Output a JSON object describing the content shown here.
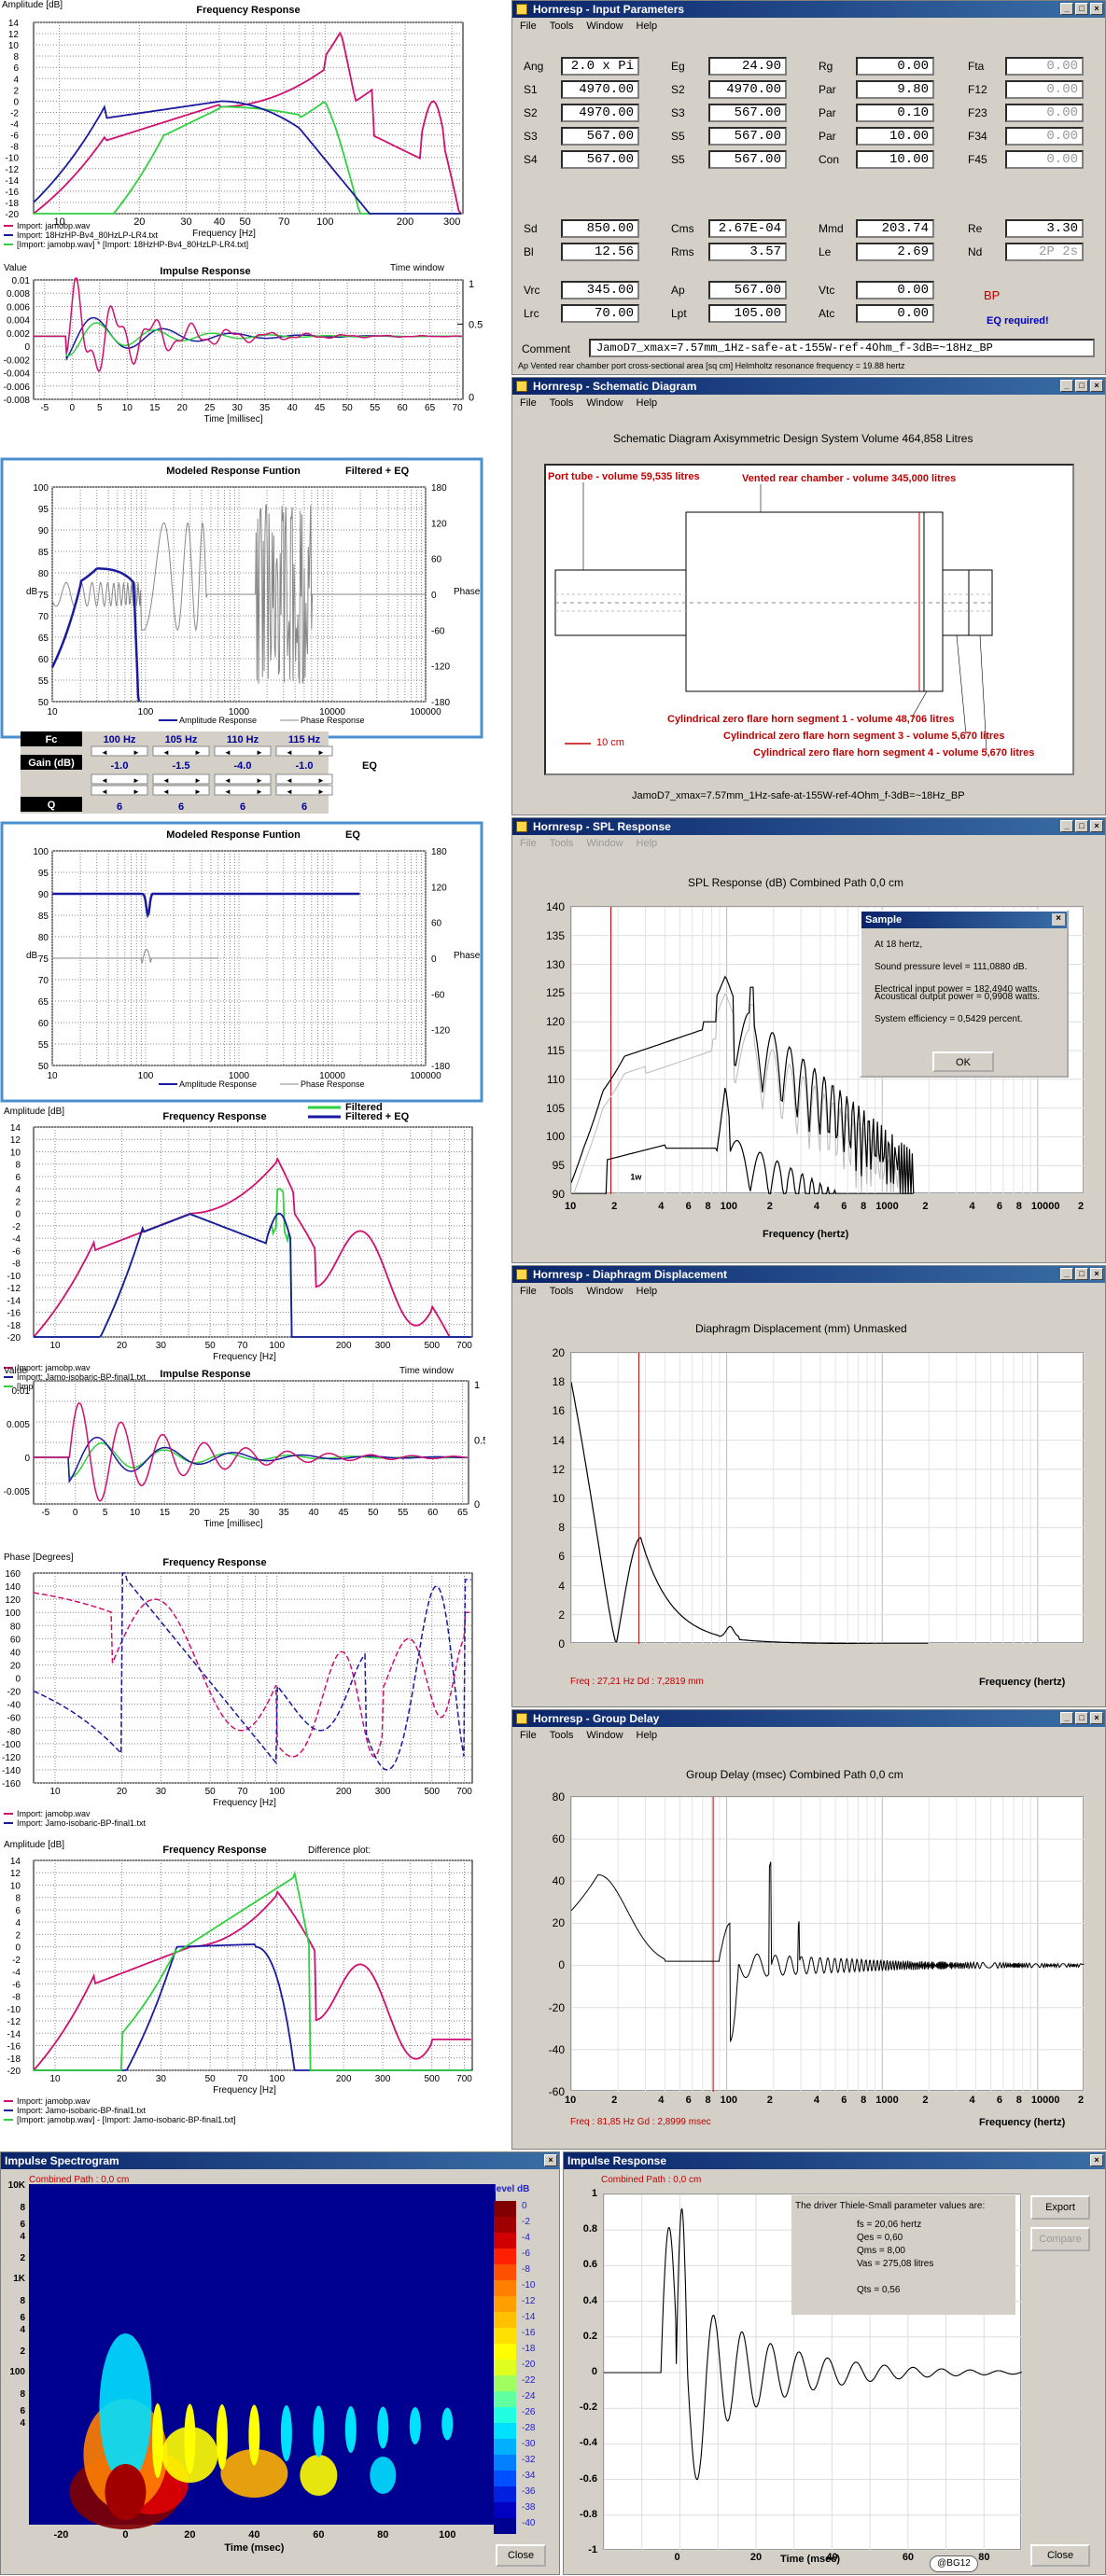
{
  "input_params": {
    "title": "Hornresp - Input Parameters",
    "menu": [
      "File",
      "Tools",
      "Window",
      "Help"
    ],
    "rows1": [
      [
        [
          "Ang",
          "2.0 x Pi"
        ],
        [
          "Eg",
          "24.90"
        ],
        [
          "Rg",
          "0.00"
        ],
        [
          "Fta",
          "0.00"
        ]
      ],
      [
        [
          "S1",
          "4970.00"
        ],
        [
          "S2",
          "4970.00"
        ],
        [
          "Par",
          "9.80"
        ],
        [
          "F12",
          "0.00"
        ]
      ],
      [
        [
          "S2",
          "4970.00"
        ],
        [
          "S3",
          "567.00"
        ],
        [
          "Par",
          "0.10"
        ],
        [
          "F23",
          "0.00"
        ]
      ],
      [
        [
          "S3",
          "567.00"
        ],
        [
          "S5",
          "567.00"
        ],
        [
          "Par",
          "10.00"
        ],
        [
          "F34",
          "0.00"
        ]
      ],
      [
        [
          "S4",
          "567.00"
        ],
        [
          "S5",
          "567.00"
        ],
        [
          "Con",
          "10.00"
        ],
        [
          "F45",
          "0.00"
        ]
      ]
    ],
    "rows2": [
      [
        [
          "Sd",
          "850.00"
        ],
        [
          "Cms",
          "2.67E-04"
        ],
        [
          "Mmd",
          "203.74"
        ],
        [
          "Re",
          "3.30"
        ]
      ],
      [
        [
          "Bl",
          "12.56"
        ],
        [
          "Rms",
          "3.57"
        ],
        [
          "Le",
          "2.69"
        ],
        [
          "Nd",
          "2P 2s"
        ]
      ]
    ],
    "rows3": [
      [
        [
          "Vrc",
          "345.00"
        ],
        [
          "Ap",
          "567.00"
        ],
        [
          "Vtc",
          "0.00"
        ]
      ],
      [
        [
          "Lrc",
          "70.00"
        ],
        [
          "Lpt",
          "105.00"
        ],
        [
          "Atc",
          "0.00"
        ]
      ]
    ],
    "bp": "BP",
    "eq_required": "EQ required!",
    "comment_label": "Comment",
    "comment": "JamoD7_xmax=7.57mm_1Hz-safe-at-155W-ref-4Ohm_f-3dB=~18Hz_BP",
    "status": "Ap   Vented rear chamber port cross-sectional area  [sq cm]   Helmholtz resonance frequency = 19.88 hertz"
  },
  "schematic": {
    "title": "Hornresp - Schematic Diagram",
    "menu": [
      "File",
      "Tools",
      "Window",
      "Help"
    ],
    "header": "Schematic Diagram   Axisymmetric Design   System Volume 464,858 Litres",
    "port_label": "Port tube - volume 59,535 litres",
    "rear_label": "Vented rear chamber - volume 345,000 litres",
    "seg1": "Cylindrical zero flare horn segment 1 - volume 48,706 litres",
    "seg3": "Cylindrical zero flare horn segment 3 - volume 5,670 litres",
    "seg4": "Cylindrical zero flare horn segment 4 - volume 5,670 litres",
    "scale": "10 cm",
    "footer": "JamoD7_xmax=7.57mm_1Hz-safe-at-155W-ref-4Ohm_f-3dB=~18Hz_BP"
  },
  "spl": {
    "title": "Hornresp - SPL Response",
    "menu": [
      "File",
      "Tools",
      "Window",
      "Help"
    ],
    "header": "SPL Response (dB)   Combined   Path 0,0 cm",
    "yticks": [
      "140",
      "135",
      "130",
      "125",
      "120",
      "115",
      "110",
      "105",
      "100",
      "95",
      "90"
    ],
    "xticks": [
      "10",
      "2",
      "4",
      "6",
      "8",
      "100",
      "2",
      "4",
      "6",
      "8",
      "1000",
      "2",
      "4",
      "6",
      "8",
      "10000",
      "2"
    ],
    "xlabel": "Frequency (hertz)",
    "marker": "1w",
    "dialog": {
      "title": "Sample",
      "lines": [
        "At 18 hertz,",
        "Sound pressure level = 111,0880 dB.",
        "Electrical input power = 182,4940 watts.",
        "Acoustical output power = 0,9908 watts.",
        "System efficiency = 0,5429 percent."
      ],
      "ok": "OK"
    }
  },
  "displacement": {
    "title": "Hornresp - Diaphragm Displacement",
    "menu": [
      "File",
      "Tools",
      "Window",
      "Help"
    ],
    "header": "Diaphragm Displacement (mm)   Unmasked",
    "yticks": [
      "20",
      "18",
      "16",
      "14",
      "12",
      "10",
      "8",
      "6",
      "4",
      "2",
      "0"
    ],
    "xticks": [
      "10",
      "2",
      "4",
      "6",
      "8",
      "100",
      "2",
      "4",
      "6",
      "8",
      "1000",
      "2",
      "4",
      "6",
      "8",
      "10000",
      "2"
    ],
    "freq": "Freq : 27,21 Hz      Dd : 7,2819 mm",
    "xlabel": "Frequency (hertz)"
  },
  "group_delay": {
    "title": "Hornresp - Group Delay",
    "menu": [
      "File",
      "Tools",
      "Window",
      "Help"
    ],
    "header": "Group Delay (msec)   Combined   Path 0,0 cm",
    "yticks": [
      "80",
      "60",
      "40",
      "20",
      "0",
      "-20",
      "-40",
      "-60"
    ],
    "xticks": [
      "10",
      "2",
      "4",
      "6",
      "8",
      "100",
      "2",
      "4",
      "6",
      "8",
      "1000",
      "2",
      "4",
      "6",
      "8",
      "10000",
      "2"
    ],
    "freq": "Freq : 81,85 Hz      Gd : 2,8999 msec",
    "xlabel": "Frequency (hertz)"
  },
  "spectrogram": {
    "title": "Impulse Spectrogram",
    "sub": "Combined      Path : 0,0 cm",
    "yticks": [
      "10K",
      "8",
      "6",
      "4",
      "2",
      "1K",
      "8",
      "6",
      "4",
      "2",
      "100",
      "8",
      "6",
      "4"
    ],
    "xticks": [
      "-20",
      "0",
      "20",
      "40",
      "60",
      "80",
      "100"
    ],
    "xlabel": "Time (msec)",
    "legend_title": "level  dB",
    "legend": [
      "0",
      "-2",
      "-4",
      "-6",
      "-8",
      "-10",
      "-12",
      "-14",
      "-16",
      "-18",
      "-20",
      "-22",
      "-24",
      "-26",
      "-28",
      "-30",
      "-32",
      "-34",
      "-36",
      "-38",
      "-40"
    ],
    "close": "Close"
  },
  "impulse": {
    "title": "Impulse Response",
    "sub": "Combined      Path : 0,0 cm",
    "yticks": [
      "1",
      "0.8",
      "0.6",
      "0.4",
      "0.2",
      "0",
      "-0.2",
      "-0.4",
      "-0.6",
      "-0.8",
      "-1"
    ],
    "xticks": [
      "0",
      "20",
      "40",
      "60",
      "80"
    ],
    "xlabel": "Time (msec)",
    "ts_title": "The driver Thiele-Small parameter values are:",
    "ts": [
      "fs = 20,06 hertz",
      "Qes = 0,60",
      "Qms = 8,00",
      "Vas = 275,08 litres",
      "",
      "Qts = 0,56"
    ],
    "export": "Export",
    "compare": "Compare",
    "close": "Close",
    "credit": "@BG12"
  },
  "left": {
    "fr1": {
      "title": "Frequency Response",
      "ylabel": "Amplitude [dB]",
      "yticks": [
        "14",
        "12",
        "10",
        "8",
        "6",
        "4",
        "2",
        "0",
        "-2",
        "-4",
        "-6",
        "-8",
        "-10",
        "-12",
        "-14",
        "-16",
        "-18",
        "-20"
      ],
      "xticks": [
        "10",
        "20",
        "30",
        "40",
        "50",
        "70",
        "100",
        "200",
        "300"
      ],
      "xlabel": "Frequency [Hz]",
      "legend": [
        "Import: jamobp.wav",
        "Import: 18HzHP-Bv4_80HzLP-LR4.txt",
        "[Import: jamobp.wav] * [Import: 18HzHP-Bv4_80HzLP-LR4.txt]"
      ]
    },
    "ir1": {
      "title": "Impulse Response",
      "ylabel": "Value",
      "right": "Time window",
      "yticks": [
        "0.01",
        "0.008",
        "0.006",
        "0.004",
        "0.002",
        "0",
        "-0.002",
        "-0.004",
        "-0.006",
        "-0.008"
      ],
      "xticks": [
        "-5",
        "0",
        "5",
        "10",
        "15",
        "20",
        "25",
        "30",
        "35",
        "40",
        "45",
        "50",
        "55",
        "60",
        "65",
        "70"
      ],
      "xlabel": "Time [millisec]",
      "rticks": [
        "1",
        "0.5",
        "0"
      ]
    },
    "mr1": {
      "title": "Modeled Response Funtion",
      "sub": "Filtered + EQ",
      "yticks": [
        "100",
        "95",
        "90",
        "85",
        "80",
        "75",
        "70",
        "65",
        "60",
        "55",
        "50"
      ],
      "rticks": [
        "180",
        "120",
        "60",
        "0",
        "-60",
        "-120",
        "-180"
      ],
      "xticks": [
        "10",
        "100",
        "1000",
        "10000",
        "100000"
      ],
      "ylabel": "dB",
      "rlabel": "Phase",
      "legend": [
        "Amplitude Response",
        "Phase Response"
      ]
    },
    "eq": {
      "fc": "Fc",
      "gain": "Gain (dB)",
      "q": "Q",
      "freqs": [
        "100 Hz",
        "105 Hz",
        "110 Hz",
        "115 Hz"
      ],
      "gains": [
        "-1.0",
        "-1.5",
        "-4.0",
        "-1.0"
      ],
      "qs": [
        "6",
        "6",
        "6",
        "6"
      ],
      "label": "EQ"
    },
    "mr2": {
      "title": "Modeled Response Funtion",
      "sub": "EQ",
      "yticks": [
        "100",
        "95",
        "90",
        "85",
        "80",
        "75",
        "70",
        "65",
        "60",
        "55",
        "50"
      ],
      "rticks": [
        "180",
        "120",
        "60",
        "0",
        "-60",
        "-120",
        "-180"
      ],
      "xticks": [
        "10",
        "100",
        "1000",
        "10000",
        "100000"
      ],
      "ylabel": "dB",
      "rlabel": "Phase",
      "legend": [
        "Amplitude Response",
        "Phase Response"
      ]
    },
    "fr2": {
      "title": "Frequency Response",
      "ylabel": "Amplitude [dB]",
      "legend_top": [
        "Filtered",
        "Filtered + EQ"
      ],
      "yticks": [
        "14",
        "12",
        "10",
        "8",
        "6",
        "4",
        "2",
        "0",
        "-2",
        "-4",
        "-6",
        "-8",
        "-10",
        "-12",
        "-14",
        "-16",
        "-18",
        "-20"
      ],
      "xticks": [
        "10",
        "20",
        "30",
        "50",
        "70",
        "100",
        "200",
        "300",
        "500",
        "700"
      ],
      "xlabel": "Frequency [Hz]",
      "legend": [
        "Import: jamobp.wav",
        "Import: Jamo-isobaric-BP-final1.txt",
        "[Import: jamobp.wav] * [Import: 18HzHP-Bv4_80HzLP-LR4.txt]"
      ]
    },
    "ir2": {
      "title": "Impulse Response",
      "ylabel": "Value",
      "right": "Time window",
      "yticks": [
        "0.01",
        "0.005",
        "0",
        "-0.005"
      ],
      "xticks": [
        "-5",
        "0",
        "5",
        "10",
        "15",
        "20",
        "25",
        "30",
        "35",
        "40",
        "45",
        "50",
        "55",
        "60",
        "65"
      ],
      "xlabel": "Time [millisec]",
      "rticks": [
        "1",
        "0.5",
        "0"
      ]
    },
    "ph": {
      "title": "Frequency Response",
      "ylabel": "Phase [Degrees]",
      "yticks": [
        "160",
        "140",
        "120",
        "100",
        "80",
        "60",
        "40",
        "20",
        "0",
        "-20",
        "-40",
        "-60",
        "-80",
        "-100",
        "-120",
        "-140",
        "-160"
      ],
      "xticks": [
        "10",
        "20",
        "30",
        "50",
        "70",
        "100",
        "200",
        "300",
        "500",
        "700"
      ],
      "xlabel": "Frequency [Hz]",
      "legend": [
        "Import: jamobp.wav",
        "Import: Jamo-isobaric-BP-final1.txt"
      ]
    },
    "fr3": {
      "title": "Frequency Response",
      "sub": "Difference plot:",
      "ylabel": "Amplitude [dB]",
      "yticks": [
        "14",
        "12",
        "10",
        "8",
        "6",
        "4",
        "2",
        "0",
        "-2",
        "-4",
        "-6",
        "-8",
        "-10",
        "-12",
        "-14",
        "-16",
        "-18",
        "-20"
      ],
      "xticks": [
        "10",
        "20",
        "30",
        "50",
        "70",
        "100",
        "200",
        "300",
        "500",
        "700"
      ],
      "xlabel": "Frequency [Hz]",
      "legend": [
        "Import: jamobp.wav",
        "Import: Jamo-isobaric-BP-final1.txt",
        "[Import: jamobp.wav] - [Import: Jamo-isobaric-BP-final1.txt]"
      ]
    }
  },
  "colors": {
    "titlebar": "#0a246a",
    "magenta": "#d01070",
    "blue": "#1a1aa0",
    "green": "#30d040",
    "red": "#c00000"
  }
}
